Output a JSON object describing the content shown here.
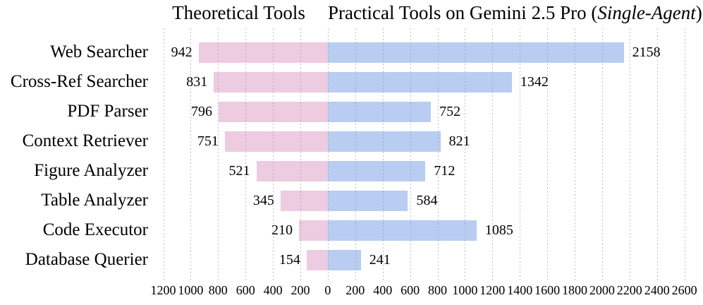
{
  "header": {
    "title_left": "Theoretical Tools",
    "title_right_prefix": "Practical Tools on Gemini 2.5 Pro (",
    "title_right_italic": "Single-Agent",
    "title_right_suffix": ")"
  },
  "colors": {
    "theoretical_bar": "#edcbe0",
    "practical_bar": "#b8cdf1",
    "gridline": "#8c8c8c",
    "text": "#000000",
    "background": "#ffffff"
  },
  "chart_data": {
    "type": "bar",
    "variant": "diverging-horizontal",
    "title_left": "Theoretical Tools",
    "title_right": "Practical Tools on Gemini 2.5 Pro (Single-Agent)",
    "categories": [
      "Web Searcher",
      "Cross-Ref Searcher",
      "PDF Parser",
      "Context Retriever",
      "Figure Analyzer",
      "Table Analyzer",
      "Code Executor",
      "Database Querier"
    ],
    "series": [
      {
        "name": "Theoretical Tools",
        "side": "left",
        "color": "#edcbe0",
        "values": [
          942,
          831,
          796,
          751,
          521,
          345,
          210,
          154
        ]
      },
      {
        "name": "Practical Tools on Gemini 2.5 Pro (Single-Agent)",
        "side": "right",
        "color": "#b8cdf1",
        "values": [
          2158,
          1342,
          752,
          821,
          712,
          584,
          1085,
          241
        ]
      }
    ],
    "value_labels_shown": true,
    "x_axis": {
      "min": -1300,
      "max": 2710,
      "tick_step": 200,
      "ticks": [
        {
          "v": -1200,
          "label": "1200"
        },
        {
          "v": -1000,
          "label": "1000"
        },
        {
          "v": -800,
          "label": "800"
        },
        {
          "v": -600,
          "label": "600"
        },
        {
          "v": -400,
          "label": "400"
        },
        {
          "v": -200,
          "label": "200"
        },
        {
          "v": 0,
          "label": "0"
        },
        {
          "v": 200,
          "label": "200"
        },
        {
          "v": 400,
          "label": "400"
        },
        {
          "v": 600,
          "label": "600"
        },
        {
          "v": 800,
          "label": "800"
        },
        {
          "v": 1000,
          "label": "1000"
        },
        {
          "v": 1200,
          "label": "1200"
        },
        {
          "v": 1400,
          "label": "1400"
        },
        {
          "v": 1600,
          "label": "1600"
        },
        {
          "v": 1800,
          "label": "1800"
        },
        {
          "v": 2000,
          "label": "2000"
        },
        {
          "v": 2200,
          "label": "2200"
        },
        {
          "v": 2400,
          "label": "2400"
        },
        {
          "v": 2600,
          "label": "2600"
        }
      ],
      "grid": "dotted"
    },
    "legend_position": "none (column headers above chart halves)"
  }
}
